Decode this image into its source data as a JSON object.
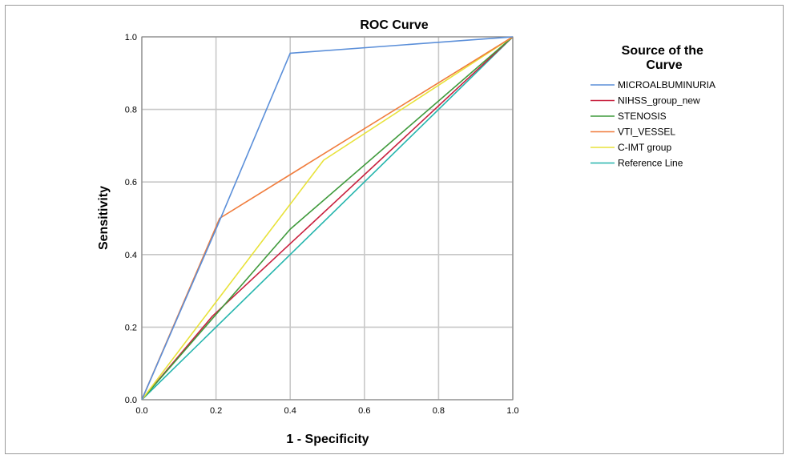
{
  "chart_data": {
    "type": "line",
    "title": "ROC Curve",
    "xlabel": "1 - Specificity",
    "ylabel": "Sensitivity",
    "xlim": [
      0,
      1
    ],
    "ylim": [
      0,
      1
    ],
    "x_ticks": [
      "0.0",
      "0.2",
      "0.4",
      "0.6",
      "0.8",
      "1.0"
    ],
    "y_ticks": [
      "0.0",
      "0.2",
      "0.4",
      "0.6",
      "0.8",
      "1.0"
    ],
    "grid": true,
    "legend_title": "Source of the Curve",
    "legend_position": "right",
    "series": [
      {
        "name": "MICROALBUMINURIA",
        "color": "#5b8fd9",
        "x": [
          0,
          0.2,
          0.4,
          1.0
        ],
        "y": [
          0,
          0.47,
          0.955,
          1.0
        ]
      },
      {
        "name": "NIHSS_group_new",
        "color": "#c8213f",
        "x": [
          0,
          0.19,
          0.4,
          1.0
        ],
        "y": [
          0,
          0.23,
          0.43,
          1.0
        ]
      },
      {
        "name": "STENOSIS",
        "color": "#3f9a3c",
        "x": [
          0,
          0.4,
          1.0
        ],
        "y": [
          0,
          0.47,
          1.0
        ]
      },
      {
        "name": "VTI_VESSEL",
        "color": "#f07c3c",
        "x": [
          0,
          0.21,
          1.0
        ],
        "y": [
          0,
          0.5,
          1.0
        ]
      },
      {
        "name": "C-IMT group",
        "color": "#e8e23a",
        "x": [
          0,
          0.49,
          1.0
        ],
        "y": [
          0,
          0.66,
          1.0
        ]
      },
      {
        "name": "Reference Line",
        "color": "#25b5ad",
        "x": [
          0,
          1.0
        ],
        "y": [
          0,
          1.0
        ]
      }
    ]
  }
}
